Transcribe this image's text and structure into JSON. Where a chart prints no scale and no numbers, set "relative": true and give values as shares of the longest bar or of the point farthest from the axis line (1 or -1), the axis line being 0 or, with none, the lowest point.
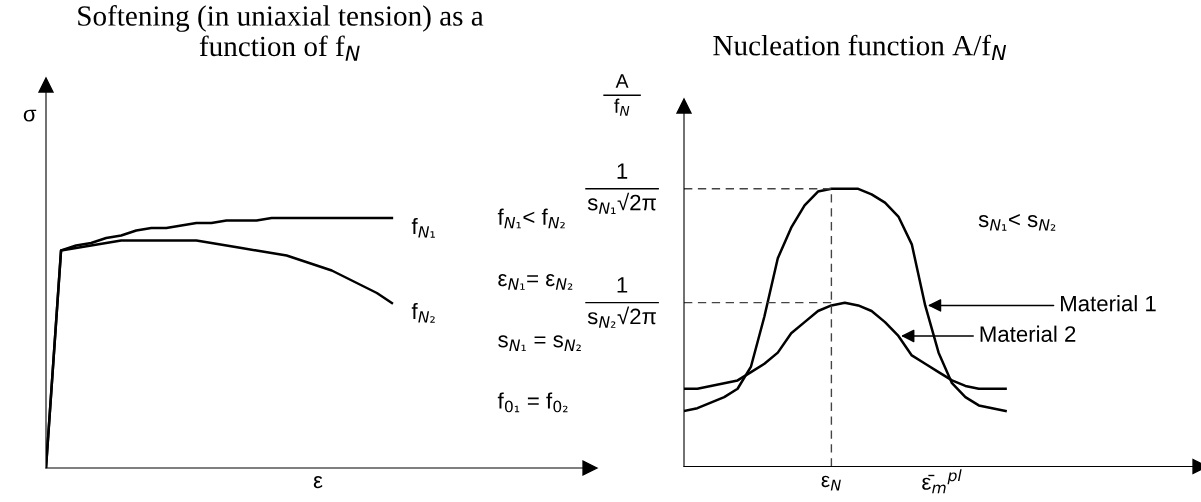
{
  "chart_data": [
    {
      "type": "line",
      "title": "Softening (in uniaxial tension) as a\nfunction of f$_{N}$",
      "xlabel": "ε",
      "ylabel": "σ",
      "relative": true,
      "categories": [
        null,
        null,
        null,
        null,
        null,
        null,
        null,
        null,
        null,
        null,
        null,
        null,
        null,
        null,
        null,
        null,
        null,
        null,
        null,
        null,
        null,
        null,
        null,
        null
      ],
      "series": [
        {
          "name": "f$_{N₁}$",
          "color": "#000000",
          "values": [
            0,
            0.87,
            0.89,
            0.9,
            0.92,
            0.93,
            0.95,
            0.96,
            0.96,
            0.97,
            0.98,
            0.98,
            0.99,
            0.99,
            0.99,
            1.0,
            1.0,
            1.0,
            1.0,
            1.0,
            1.0,
            1.0,
            1.0,
            1.0
          ]
        },
        {
          "name": "f$_{N₂}$",
          "color": "#000000",
          "values": [
            0,
            0.87,
            0.88,
            0.89,
            0.9,
            0.91,
            0.91,
            0.91,
            0.91,
            0.91,
            0.91,
            0.9,
            0.89,
            0.88,
            0.87,
            0.86,
            0.85,
            0.83,
            0.81,
            0.79,
            0.76,
            0.73,
            0.7,
            0.66
          ]
        }
      ],
      "annotations": [
        "f$_{N₁}$< f$_{N₂}$",
        "ε$_{N₁}$= ε$_{N₂}$",
        "s$_{N₁}$ = s$_{N₂}$",
        "f$_{0₁}$ = f$_{0₂}$"
      ]
    },
    {
      "type": "line",
      "title": "Nucleation function A/f$_{N}$",
      "xlabel": "ε̄$_{m}$$^{pl}$",
      "ylabel": "A\nf$_{N}$",
      "relative": true,
      "categories": [
        null,
        null,
        null,
        null,
        null,
        null,
        null,
        null,
        null,
        null,
        null,
        null,
        null,
        null,
        null,
        null,
        null,
        null,
        null,
        null,
        null,
        null,
        null,
        null,
        null
      ],
      "series": [
        {
          "name": "Material 1",
          "color": "#000000",
          "values": [
            0.2,
            0.21,
            0.23,
            0.25,
            0.28,
            0.36,
            0.54,
            0.75,
            0.86,
            0.94,
            0.99,
            1.0,
            1.0,
            1.0,
            0.98,
            0.95,
            0.9,
            0.8,
            0.58,
            0.41,
            0.3,
            0.25,
            0.22,
            0.21,
            0.2
          ]
        },
        {
          "name": "Material 2",
          "color": "#000000",
          "values": [
            0.28,
            0.28,
            0.29,
            0.3,
            0.31,
            0.34,
            0.37,
            0.41,
            0.48,
            0.52,
            0.56,
            0.58,
            0.59,
            0.58,
            0.56,
            0.52,
            0.47,
            0.4,
            0.37,
            0.34,
            0.31,
            0.29,
            0.28,
            0.28,
            0.28
          ]
        }
      ],
      "ref_lines": [
        {
          "axis": "y",
          "value": 1,
          "label": "1\ns$_{N₁}$√2π",
          "line_style": "dashed"
        },
        {
          "axis": "y",
          "value": 0.59,
          "label": "1\ns$_{N₂}$√2π",
          "line_style": "dashed"
        },
        {
          "axis": "x",
          "label": "ε$_{N}$",
          "line_style": "dashed"
        }
      ],
      "annotations": [
        "s$_{N₁}$< s$_{N₂}$"
      ]
    }
  ]
}
